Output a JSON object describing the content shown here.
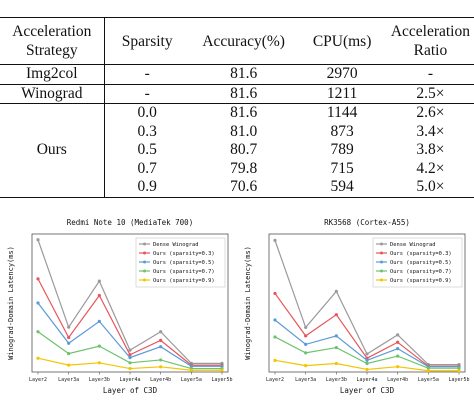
{
  "table": {
    "headers": [
      [
        "Acceleration",
        "Strategy"
      ],
      [
        "Sparsity"
      ],
      [
        "Accuracy(%)"
      ],
      [
        "CPU(ms)"
      ],
      [
        "Acceleration",
        "Ratio"
      ]
    ],
    "rows": [
      [
        "Img2col",
        "-",
        "81.6",
        "2970",
        "-"
      ],
      [
        "Winograd",
        "-",
        "81.6",
        "1211",
        "2.5×"
      ],
      [
        "",
        "0.0",
        "81.6",
        "1144",
        "2.6×"
      ],
      [
        "",
        "0.3",
        "81.0",
        "873",
        "3.4×"
      ],
      [
        "Ours",
        "0.5",
        "80.7",
        "789",
        "3.8×"
      ],
      [
        "",
        "0.7",
        "79.8",
        "715",
        "4.2×"
      ],
      [
        "",
        "0.9",
        "70.6",
        "594",
        "5.0×"
      ]
    ]
  },
  "chart_data": [
    {
      "type": "line",
      "title": "Redmi Note 10 (MediaTek 700)",
      "xlabel": "Layer of C3D",
      "ylabel": "Winograd-Domain Latency(ms)",
      "categories": [
        "Layer2",
        "Layer3a",
        "Layer3b",
        "Layer4a",
        "Layer4b",
        "Layer5a",
        "Layer5b"
      ],
      "ylim": [
        0,
        240
      ],
      "legend": "top-right",
      "series": [
        {
          "name": "Dense Winograd",
          "color": "#9a9a9a",
          "values": [
            230,
            78,
            158,
            38,
            70,
            15,
            15
          ]
        },
        {
          "name": "Ours (sparsity=0.3)",
          "color": "#e8555a",
          "values": [
            162,
            60,
            133,
            30,
            55,
            12,
            12
          ]
        },
        {
          "name": "Ours (sparsity=0.5)",
          "color": "#5b9bd5",
          "values": [
            120,
            50,
            88,
            25,
            44,
            10,
            10
          ]
        },
        {
          "name": "Ours (sparsity=0.7)",
          "color": "#6dc26b",
          "values": [
            70,
            32,
            45,
            16,
            21,
            6,
            6
          ]
        },
        {
          "name": "Ours (sparsity=0.9)",
          "color": "#f2c500",
          "values": [
            24,
            12,
            16,
            6,
            9,
            3,
            3
          ]
        }
      ]
    },
    {
      "type": "line",
      "title": "RK3568 (Cortex-A55)",
      "xlabel": "Layer of C3D",
      "ylabel": "Winograd-Domain Latency(ms)",
      "categories": [
        "Layer2",
        "Layer3a",
        "Layer3b",
        "Layer4a",
        "Layer4b",
        "Layer5a",
        "Layer5b"
      ],
      "ylim": [
        0,
        650
      ],
      "legend": "top-right",
      "series": [
        {
          "name": "Dense Winograd",
          "color": "#9a9a9a",
          "values": [
            620,
            210,
            380,
            85,
            175,
            35,
            35
          ]
        },
        {
          "name": "Ours (sparsity=0.3)",
          "color": "#e8555a",
          "values": [
            370,
            170,
            270,
            65,
            140,
            28,
            28
          ]
        },
        {
          "name": "Ours (sparsity=0.5)",
          "color": "#5b9bd5",
          "values": [
            245,
            130,
            170,
            55,
            110,
            25,
            25
          ]
        },
        {
          "name": "Ours (sparsity=0.7)",
          "color": "#6dc26b",
          "values": [
            165,
            90,
            115,
            40,
            75,
            18,
            18
          ]
        },
        {
          "name": "Ours (sparsity=0.9)",
          "color": "#f2c500",
          "values": [
            55,
            30,
            40,
            12,
            25,
            6,
            6
          ]
        }
      ]
    }
  ]
}
